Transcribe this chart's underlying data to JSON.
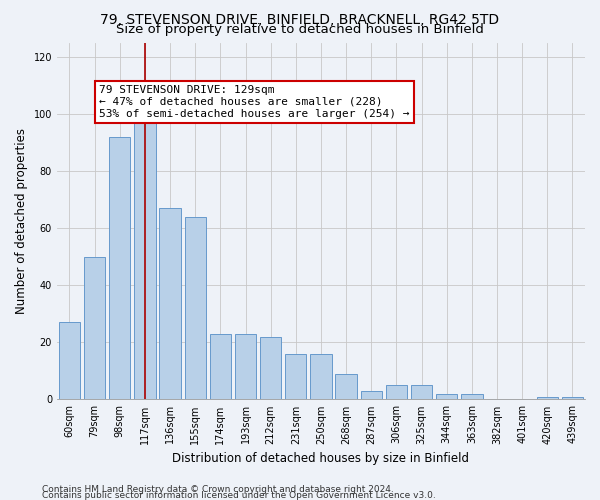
{
  "title_line1": "79, STEVENSON DRIVE, BINFIELD, BRACKNELL, RG42 5TD",
  "title_line2": "Size of property relative to detached houses in Binfield",
  "xlabel": "Distribution of detached houses by size in Binfield",
  "ylabel": "Number of detached properties",
  "categories": [
    "60sqm",
    "79sqm",
    "98sqm",
    "117sqm",
    "136sqm",
    "155sqm",
    "174sqm",
    "193sqm",
    "212sqm",
    "231sqm",
    "250sqm",
    "268sqm",
    "287sqm",
    "306sqm",
    "325sqm",
    "344sqm",
    "363sqm",
    "382sqm",
    "401sqm",
    "420sqm",
    "439sqm"
  ],
  "values": [
    27,
    50,
    92,
    97,
    67,
    64,
    23,
    23,
    22,
    16,
    16,
    9,
    3,
    5,
    5,
    2,
    2,
    0,
    0,
    1,
    1
  ],
  "bar_color": "#b8d0e8",
  "bar_edge_color": "#6699cc",
  "bar_width": 0.85,
  "red_line_x": 3,
  "red_line_color": "#aa0000",
  "annotation_text": "79 STEVENSON DRIVE: 129sqm\n← 47% of detached houses are smaller (228)\n53% of semi-detached houses are larger (254) →",
  "annotation_box_facecolor": "#ffffff",
  "annotation_box_edgecolor": "#cc0000",
  "ylim": [
    0,
    125
  ],
  "yticks": [
    0,
    20,
    40,
    60,
    80,
    100,
    120
  ],
  "grid_color": "#c8c8c8",
  "background_color": "#eef2f8",
  "footer_line1": "Contains HM Land Registry data © Crown copyright and database right 2024.",
  "footer_line2": "Contains public sector information licensed under the Open Government Licence v3.0.",
  "title_fontsize": 10,
  "subtitle_fontsize": 9.5,
  "axis_label_fontsize": 8.5,
  "tick_fontsize": 7,
  "annotation_fontsize": 8,
  "footer_fontsize": 6.5
}
